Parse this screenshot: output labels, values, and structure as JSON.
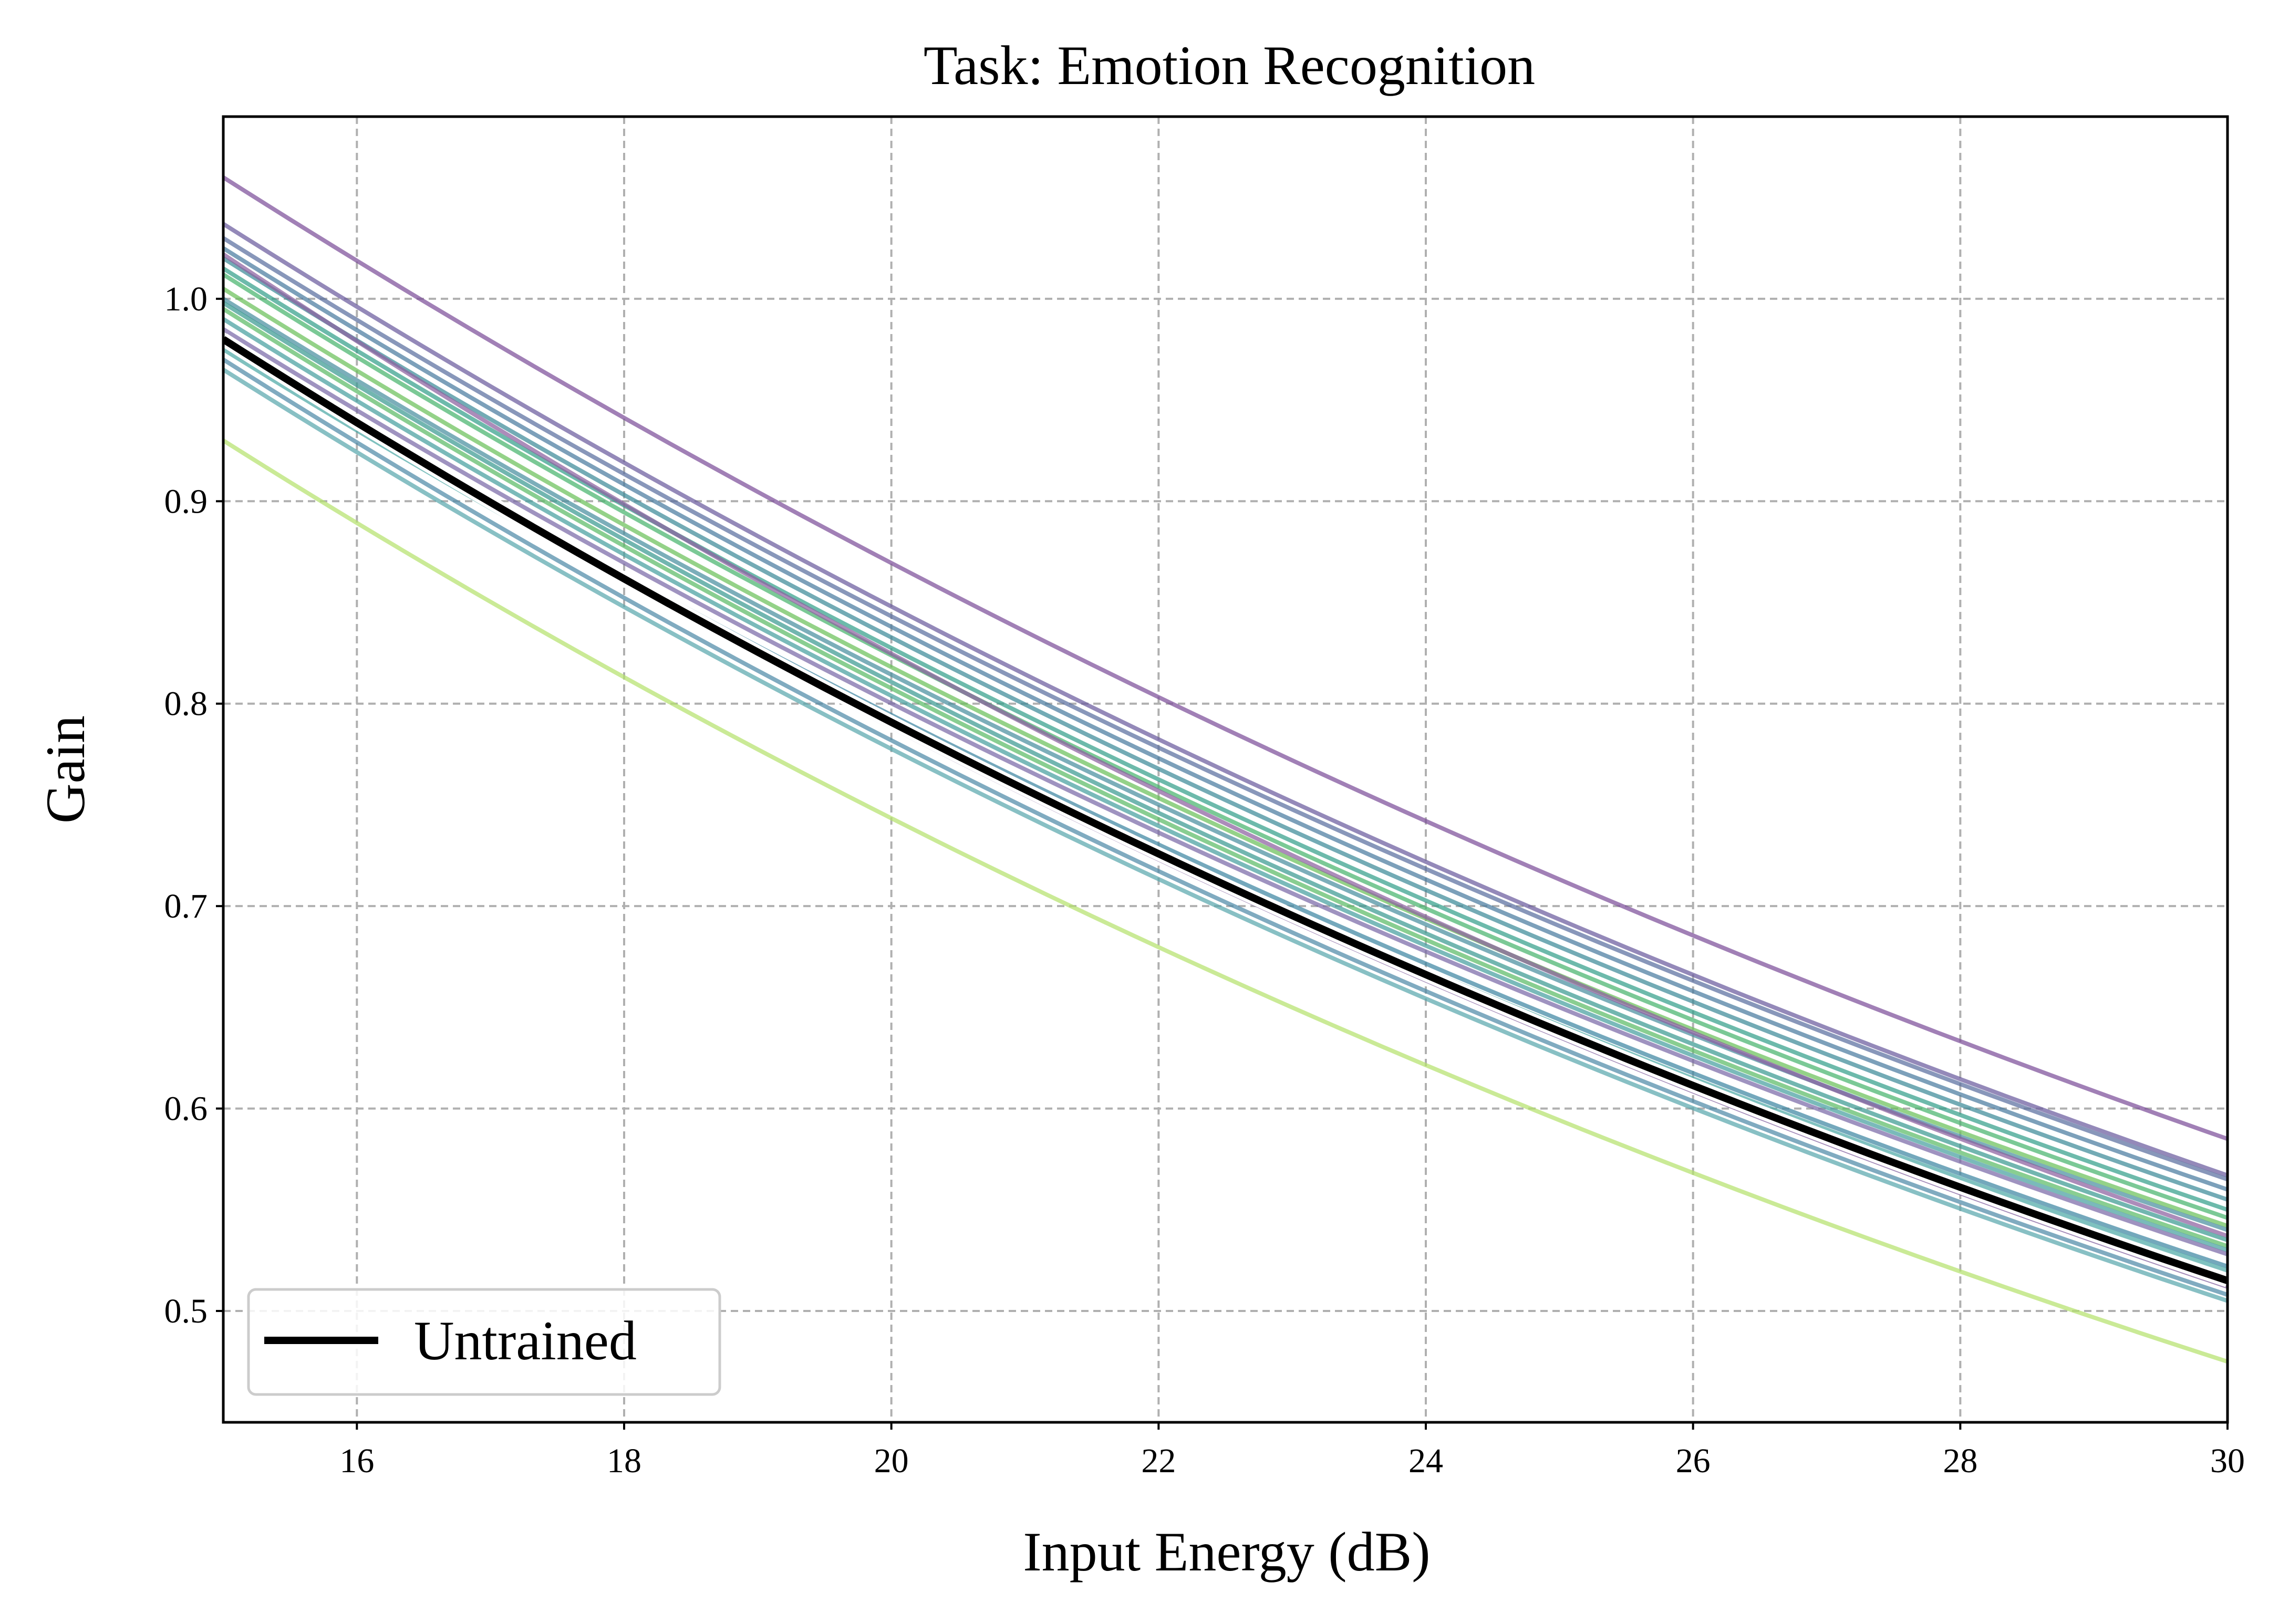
{
  "chart_data": {
    "type": "line",
    "title": "Task: Emotion Recognition",
    "xlabel": "Input Energy (dB)",
    "ylabel": "Gain",
    "xlim": [
      15,
      30
    ],
    "ylim": [
      0.445,
      1.09
    ],
    "xticks": [
      16,
      18,
      20,
      22,
      24,
      26,
      28,
      30
    ],
    "xtick_labels": [
      "16",
      "18",
      "20",
      "22",
      "24",
      "26",
      "28",
      "30"
    ],
    "yticks": [
      0.5,
      0.6,
      0.7,
      0.8,
      0.9,
      1.0
    ],
    "ytick_labels": [
      "0.5",
      "0.6",
      "0.7",
      "0.8",
      "0.9",
      "1.0"
    ],
    "grid": true,
    "grid_style": "dashed",
    "legend": {
      "position": "lower-left",
      "entries": [
        "Untrained"
      ]
    },
    "untrained": {
      "name": "Untrained",
      "color": "#000000",
      "y_at_15": 0.98,
      "y_at_30": 0.515
    },
    "trained_series": [
      {
        "color": "#7d4f9a",
        "y_at_15": 1.06,
        "y_at_30": 0.585
      },
      {
        "color": "#6b5b9e",
        "y_at_15": 1.037,
        "y_at_30": 0.567
      },
      {
        "color": "#5a6fa0",
        "y_at_15": 1.03,
        "y_at_30": 0.565
      },
      {
        "color": "#4a7ba0",
        "y_at_15": 1.025,
        "y_at_30": 0.56
      },
      {
        "color": "#3d8a99",
        "y_at_15": 1.02,
        "y_at_30": 0.555
      },
      {
        "color": "#35a08a",
        "y_at_15": 1.015,
        "y_at_30": 0.55
      },
      {
        "color": "#48b46e",
        "y_at_15": 1.012,
        "y_at_30": 0.546
      },
      {
        "color": "#6bc05a",
        "y_at_15": 1.005,
        "y_at_30": 0.542
      },
      {
        "color": "#4a8fa0",
        "y_at_15": 1.0,
        "y_at_30": 0.54
      },
      {
        "color": "#8c5fa0",
        "y_at_15": 1.022,
        "y_at_30": 0.537
      },
      {
        "color": "#3b9a92",
        "y_at_15": 0.998,
        "y_at_30": 0.535
      },
      {
        "color": "#5cbb66",
        "y_at_15": 0.995,
        "y_at_30": 0.532
      },
      {
        "color": "#46a0a0",
        "y_at_15": 0.99,
        "y_at_30": 0.53
      },
      {
        "color": "#7a6aa8",
        "y_at_15": 0.985,
        "y_at_30": 0.528
      },
      {
        "color": "#3f86a2",
        "y_at_15": 0.98,
        "y_at_30": 0.522
      },
      {
        "color": "#4ea9a6",
        "y_at_15": 0.975,
        "y_at_30": 0.52
      },
      {
        "color": "#7e5c9c",
        "y_at_15": 0.978,
        "y_at_30": 0.512
      },
      {
        "color": "#4f8ba8",
        "y_at_15": 0.97,
        "y_at_30": 0.508
      },
      {
        "color": "#5aa8ad",
        "y_at_15": 0.965,
        "y_at_30": 0.505
      },
      {
        "color": "#b5e26e",
        "y_at_15": 0.93,
        "y_at_30": 0.475
      }
    ]
  }
}
